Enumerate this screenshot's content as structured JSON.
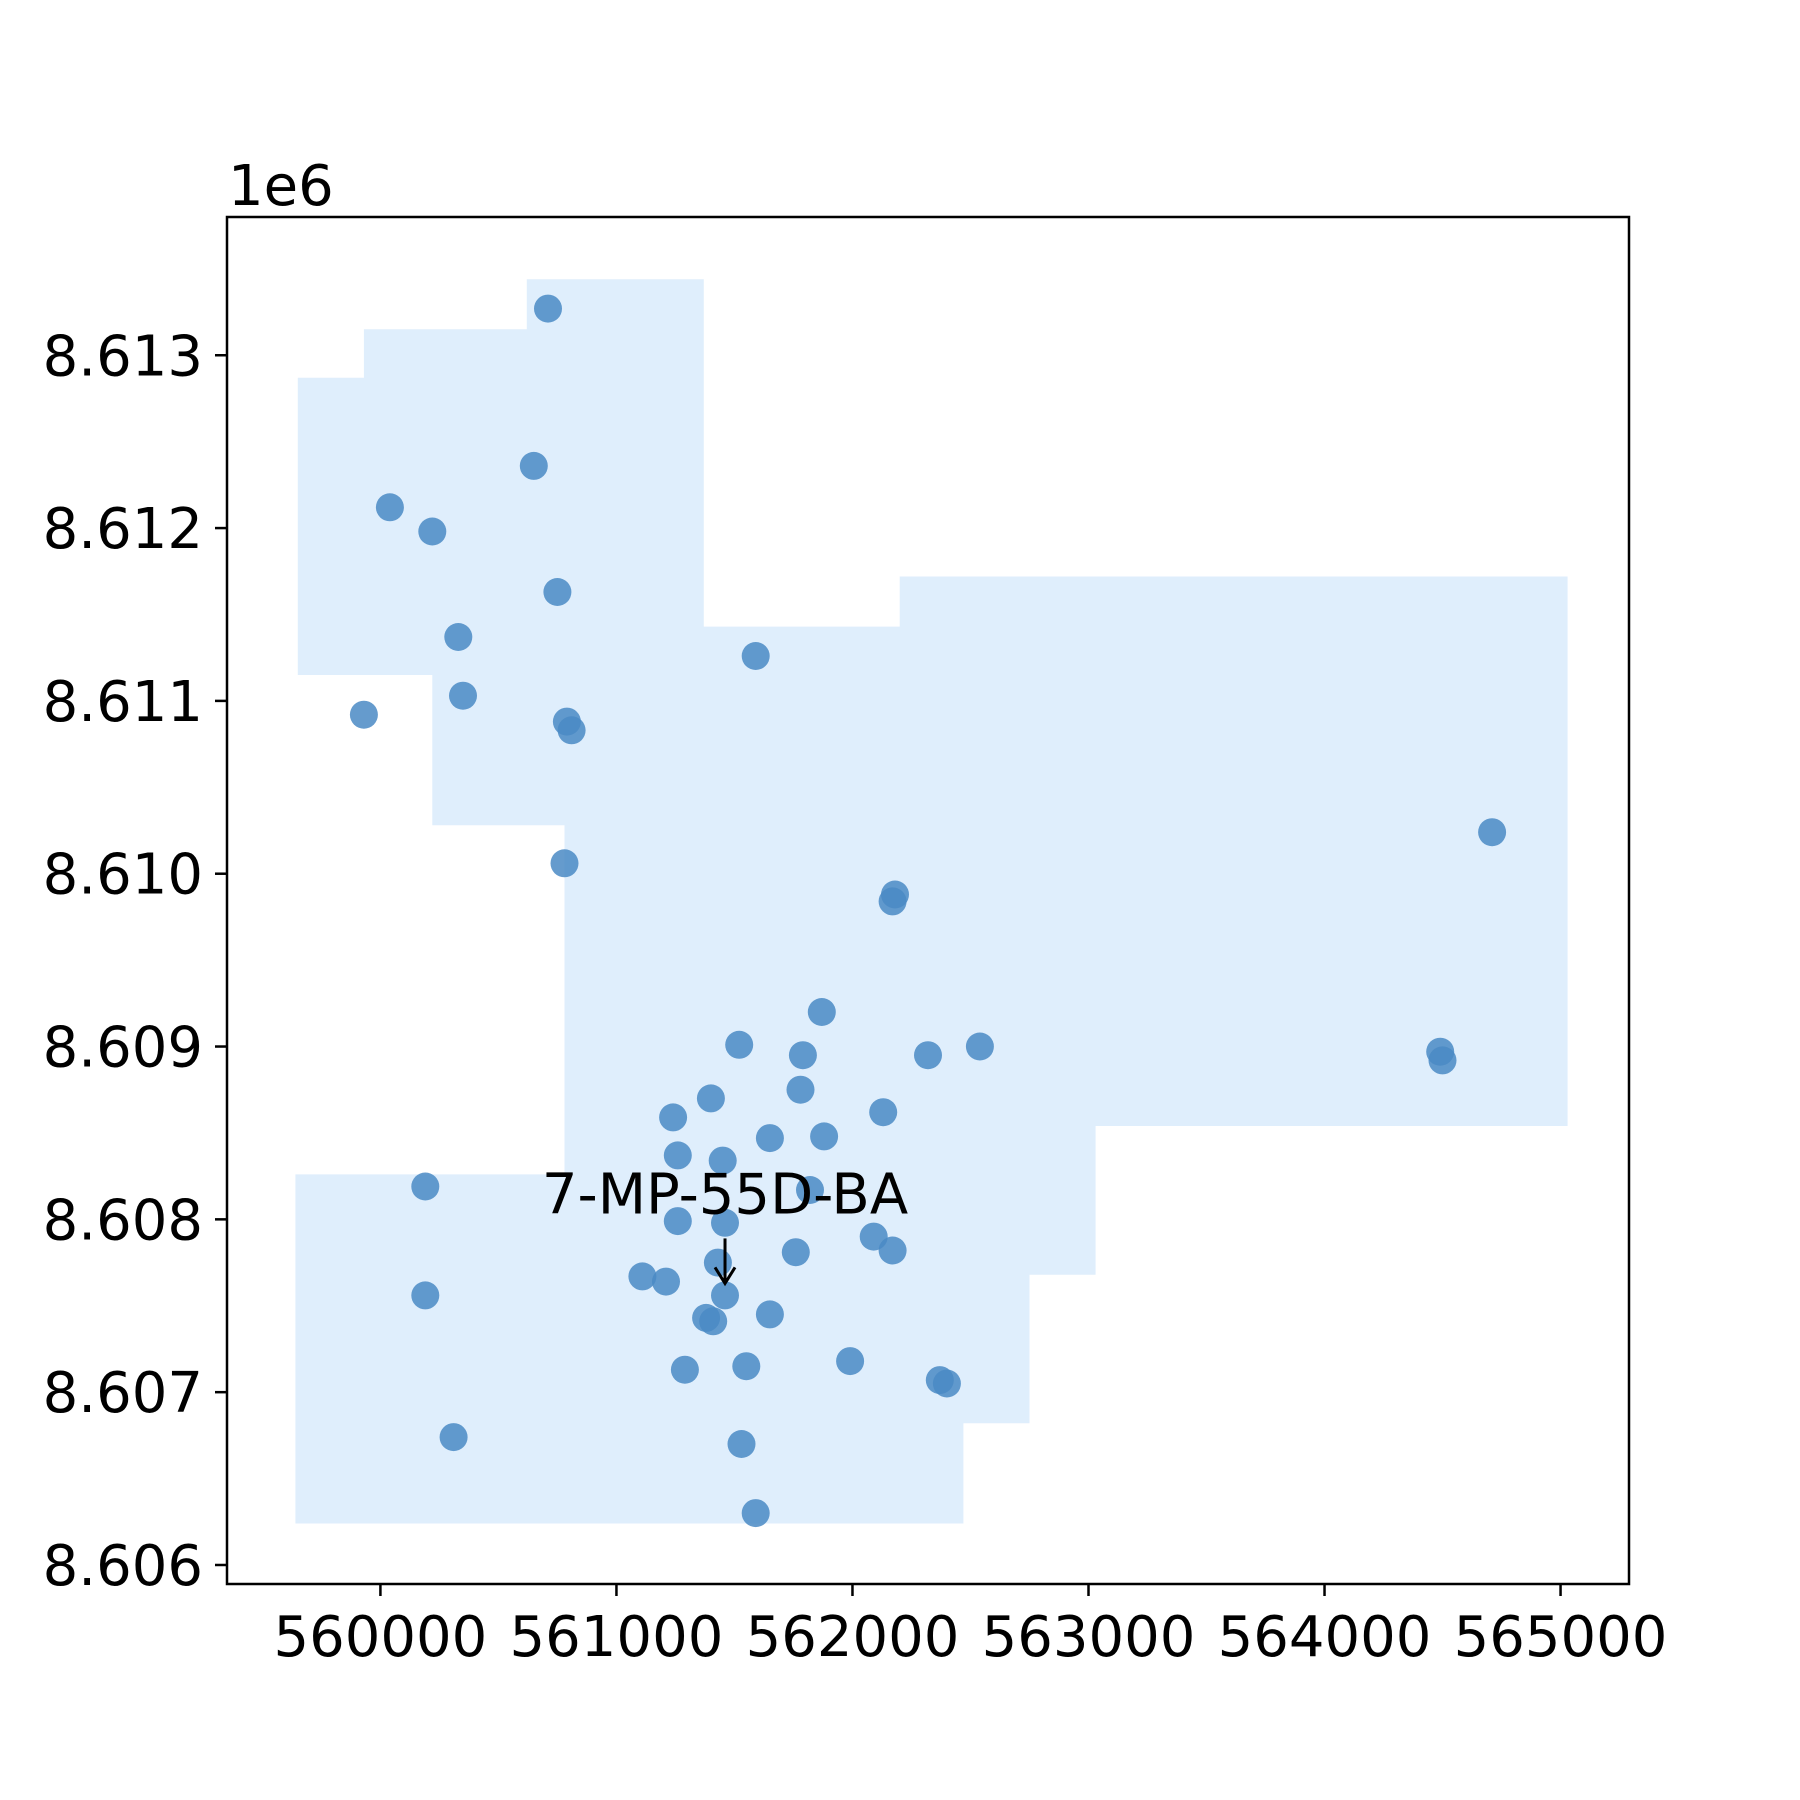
{
  "chart_data": {
    "type": "scatter",
    "title": "",
    "xlabel": "",
    "ylabel": "",
    "xlim": [
      559350,
      565290
    ],
    "ylim": [
      8605890,
      8613800
    ],
    "x_ticks": [
      560000,
      561000,
      562000,
      563000,
      564000,
      565000
    ],
    "x_tick_labels": [
      "560000",
      "561000",
      "562000",
      "563000",
      "564000",
      "565000"
    ],
    "y_ticks": [
      8606000,
      8607000,
      8608000,
      8609000,
      8610000,
      8611000,
      8612000,
      8613000
    ],
    "y_tick_labels": [
      "8.606",
      "8.607",
      "8.608",
      "8.609",
      "8.610",
      "8.611",
      "8.612",
      "8.613"
    ],
    "y_offset_label": "1e6",
    "grid": false,
    "colors": {
      "area_fill": "#dfeefc",
      "points": "#4a8ac4",
      "axes": "#000000"
    },
    "area": [
      [
        [
          560620,
          8613440
        ],
        [
          561370,
          8613440
        ],
        [
          561370,
          8611430
        ],
        [
          562200,
          8611430
        ],
        [
          562200,
          8611720
        ],
        [
          565030,
          8611720
        ],
        [
          565030,
          8608540
        ],
        [
          563030,
          8608540
        ],
        [
          563030,
          8607680
        ],
        [
          562750,
          8607680
        ],
        [
          562750,
          8606820
        ],
        [
          562470,
          8606820
        ],
        [
          562470,
          8606240
        ],
        [
          559640,
          8606240
        ],
        [
          559640,
          8608260
        ],
        [
          560780,
          8608260
        ],
        [
          560780,
          8610280
        ],
        [
          560220,
          8610280
        ],
        [
          560220,
          8611150
        ],
        [
          559650,
          8611150
        ],
        [
          559650,
          8612870
        ],
        [
          559930,
          8612870
        ],
        [
          559930,
          8613150
        ],
        [
          560620,
          8613150
        ]
      ]
    ],
    "points": [
      [
        560710,
        8613270
      ],
      [
        560650,
        8612360
      ],
      [
        560040,
        8612120
      ],
      [
        560220,
        8611980
      ],
      [
        560750,
        8611630
      ],
      [
        560330,
        8611370
      ],
      [
        560350,
        8611030
      ],
      [
        559930,
        8610920
      ],
      [
        560790,
        8610880
      ],
      [
        560810,
        8610830
      ],
      [
        560780,
        8610060
      ],
      [
        561590,
        8611260
      ],
      [
        564710,
        8610240
      ],
      [
        562180,
        8609880
      ],
      [
        562170,
        8609840
      ],
      [
        561870,
        8609200
      ],
      [
        561520,
        8609010
      ],
      [
        561790,
        8608950
      ],
      [
        562320,
        8608950
      ],
      [
        562540,
        8609000
      ],
      [
        564490,
        8608970
      ],
      [
        564500,
        8608920
      ],
      [
        561400,
        8608700
      ],
      [
        561780,
        8608750
      ],
      [
        562130,
        8608620
      ],
      [
        561240,
        8608590
      ],
      [
        561650,
        8608470
      ],
      [
        561880,
        8608480
      ],
      [
        561260,
        8608370
      ],
      [
        561450,
        8608340
      ],
      [
        560190,
        8608190
      ],
      [
        561820,
        8608170
      ],
      [
        561260,
        8607990
      ],
      [
        561460,
        8607980
      ],
      [
        561760,
        8607810
      ],
      [
        562090,
        8607900
      ],
      [
        562170,
        8607820
      ],
      [
        561430,
        8607750
      ],
      [
        561110,
        8607670
      ],
      [
        561210,
        8607640
      ],
      [
        560190,
        8607560
      ],
      [
        561460,
        8607560
      ],
      [
        561380,
        8607430
      ],
      [
        561410,
        8607410
      ],
      [
        561650,
        8607450
      ],
      [
        561290,
        8607130
      ],
      [
        561550,
        8607150
      ],
      [
        561990,
        8607180
      ],
      [
        562370,
        8607070
      ],
      [
        562400,
        8607050
      ],
      [
        560310,
        8606740
      ],
      [
        561530,
        8606700
      ],
      [
        561590,
        8606300
      ]
    ],
    "annotations": [
      {
        "text": "7-MP-55D-BA",
        "x": 561460,
        "y": 8607560,
        "text_y": 8608150
      }
    ]
  }
}
